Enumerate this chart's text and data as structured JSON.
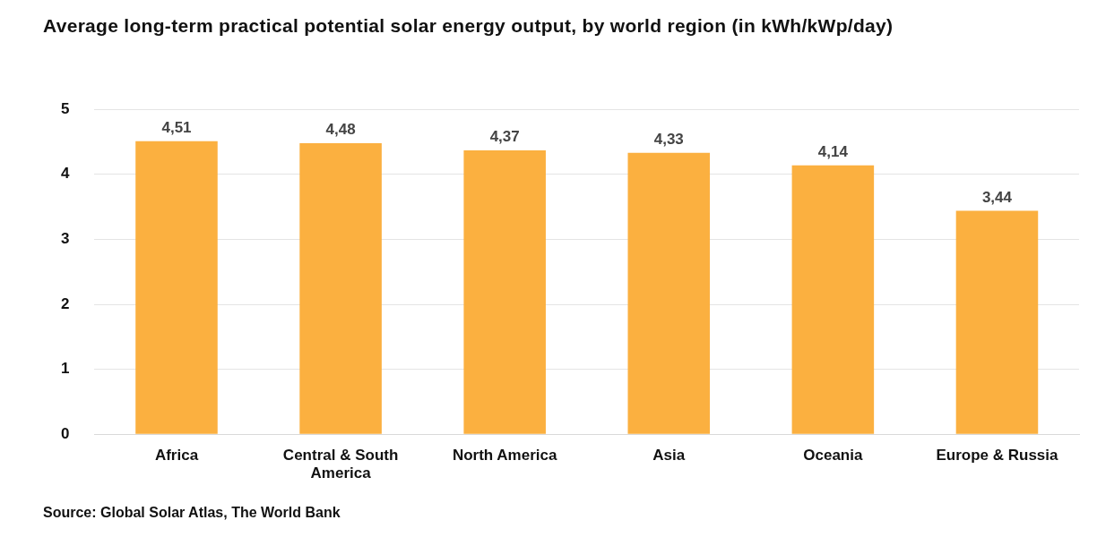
{
  "chart_data": {
    "type": "bar",
    "title": "Average long-term practical potential solar energy output, by world region (in kWh/kWp/day)",
    "categories": [
      "Africa",
      "Central & South America",
      "North America",
      "Asia",
      "Oceania",
      "Europe & Russia"
    ],
    "values": [
      4.51,
      4.48,
      4.37,
      4.33,
      4.14,
      3.44
    ],
    "value_labels": [
      "4,51",
      "4,48",
      "4,37",
      "4,33",
      "4,14",
      "3,44"
    ],
    "color": "#fbb040",
    "ylim": [
      0,
      5
    ],
    "yticks": [
      0,
      1,
      2,
      3,
      4,
      5
    ],
    "grid": "y",
    "legend": false,
    "annotations": [
      "Source: Global Solar Atlas, The World Bank"
    ]
  }
}
